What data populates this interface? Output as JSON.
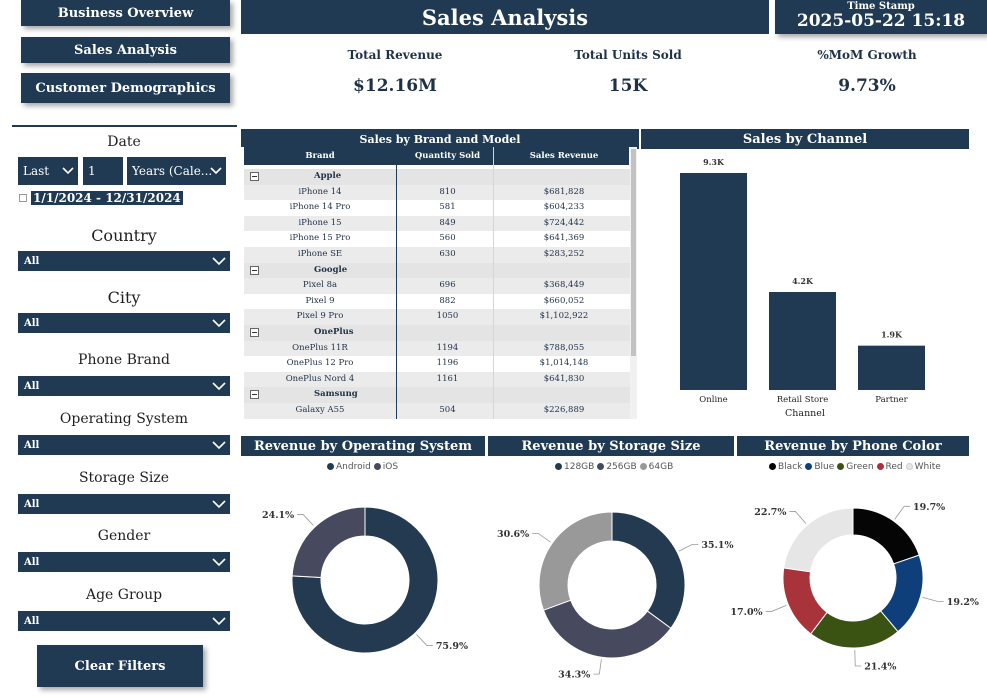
{
  "nav": {
    "business_overview": "Business Overview",
    "sales_analysis": "Sales Analysis",
    "customer_demographics": "Customer Demographics"
  },
  "header": {
    "title": "Sales Analysis",
    "timestamp_label": "Time Stamp",
    "timestamp_value": "2025-05-22 15:18"
  },
  "kpis": {
    "total_revenue_label": "Total Revenue",
    "total_revenue_value": "$12.16M",
    "total_units_label": "Total Units Sold",
    "total_units_value": "15K",
    "mom_growth_label": "%MoM Growth",
    "mom_growth_value": "9.73%"
  },
  "filters": {
    "date_label": "Date",
    "date_mode": "Last",
    "date_count": "1",
    "date_unit": "Years (Cale...",
    "date_range": "1/1/2024 - 12/31/2024",
    "country_label": "Country",
    "country_value": "All",
    "city_label": "City",
    "city_value": "All",
    "brand_label": "Phone Brand",
    "brand_value": "All",
    "os_label": "Operating System",
    "os_value": "All",
    "storage_label": "Storage Size",
    "storage_value": "All",
    "gender_label": "Gender",
    "gender_value": "All",
    "age_label": "Age Group",
    "age_value": "All",
    "clear_label": "Clear Filters"
  },
  "table": {
    "title": "Sales by Brand and Model",
    "columns": [
      "Brand",
      "Quantity Sold",
      "Sales Revenue"
    ],
    "rows": [
      {
        "type": "group",
        "brand": "Apple",
        "qty": "",
        "revenue": ""
      },
      {
        "type": "row",
        "brand": "iPhone 14",
        "qty": "810",
        "revenue": "$681,828"
      },
      {
        "type": "row",
        "brand": "iPhone 14 Pro",
        "qty": "581",
        "revenue": "$604,233"
      },
      {
        "type": "row",
        "brand": "iPhone 15",
        "qty": "849",
        "revenue": "$724,442"
      },
      {
        "type": "row",
        "brand": "iPhone 15 Pro",
        "qty": "560",
        "revenue": "$641,369"
      },
      {
        "type": "row",
        "brand": "iPhone SE",
        "qty": "630",
        "revenue": "$283,252"
      },
      {
        "type": "group",
        "brand": "Google",
        "qty": "",
        "revenue": ""
      },
      {
        "type": "row",
        "brand": "Pixel 8a",
        "qty": "696",
        "revenue": "$368,449"
      },
      {
        "type": "row",
        "brand": "Pixel 9",
        "qty": "882",
        "revenue": "$660,052"
      },
      {
        "type": "row",
        "brand": "Pixel 9 Pro",
        "qty": "1050",
        "revenue": "$1,102,922"
      },
      {
        "type": "group",
        "brand": "OnePlus",
        "qty": "",
        "revenue": ""
      },
      {
        "type": "row",
        "brand": "OnePlus 11R",
        "qty": "1194",
        "revenue": "$788,055"
      },
      {
        "type": "row",
        "brand": "OnePlus 12 Pro",
        "qty": "1196",
        "revenue": "$1,014,148"
      },
      {
        "type": "row",
        "brand": "OnePlus Nord 4",
        "qty": "1161",
        "revenue": "$641,830"
      },
      {
        "type": "group",
        "brand": "Samsung",
        "qty": "",
        "revenue": ""
      },
      {
        "type": "row",
        "brand": "Galaxy A55",
        "qty": "504",
        "revenue": "$226,889"
      }
    ]
  },
  "colors": {
    "navy": "#1f3a52",
    "android": "#233a51",
    "ios": "#474a5e",
    "s128": "#233a51",
    "s256": "#474a5e",
    "s64": "#999999",
    "black": "#050505",
    "blue": "#0f3f7a",
    "green": "#3b5312",
    "red": "#a8333a",
    "white": "#e6e6e6"
  },
  "chart_data": [
    {
      "type": "bar",
      "title": "Sales by Channel",
      "xlabel": "Channel",
      "categories": [
        "Online",
        "Retail Store",
        "Partner"
      ],
      "values": [
        9300,
        4200,
        1900
      ],
      "data_labels": [
        "9.3K",
        "4.2K",
        "1.9K"
      ],
      "ylim": [
        0,
        9300
      ]
    },
    {
      "type": "pie",
      "title": "Revenue by Operating System",
      "categories": [
        "Android",
        "iOS"
      ],
      "values": [
        75.9,
        24.1
      ],
      "data_labels": [
        "75.9%",
        "24.1%"
      ],
      "colors": [
        "#233a51",
        "#474a5e"
      ]
    },
    {
      "type": "pie",
      "title": "Revenue by Storage Size",
      "categories": [
        "128GB",
        "256GB",
        "64GB"
      ],
      "values": [
        35.1,
        34.3,
        30.6
      ],
      "data_labels": [
        "35.1%",
        "34.3%",
        "30.6%"
      ],
      "colors": [
        "#233a51",
        "#474a5e",
        "#999999"
      ]
    },
    {
      "type": "pie",
      "title": "Revenue by Phone Color",
      "categories": [
        "Black",
        "Blue",
        "Green",
        "Red",
        "White"
      ],
      "values": [
        19.7,
        19.2,
        21.4,
        17.0,
        22.7
      ],
      "data_labels": [
        "19.7%",
        "19.2%",
        "21.4%",
        "17.0%",
        "22.7%"
      ],
      "colors": [
        "#050505",
        "#0f3f7a",
        "#3b5312",
        "#a8333a",
        "#e6e6e6"
      ]
    }
  ]
}
